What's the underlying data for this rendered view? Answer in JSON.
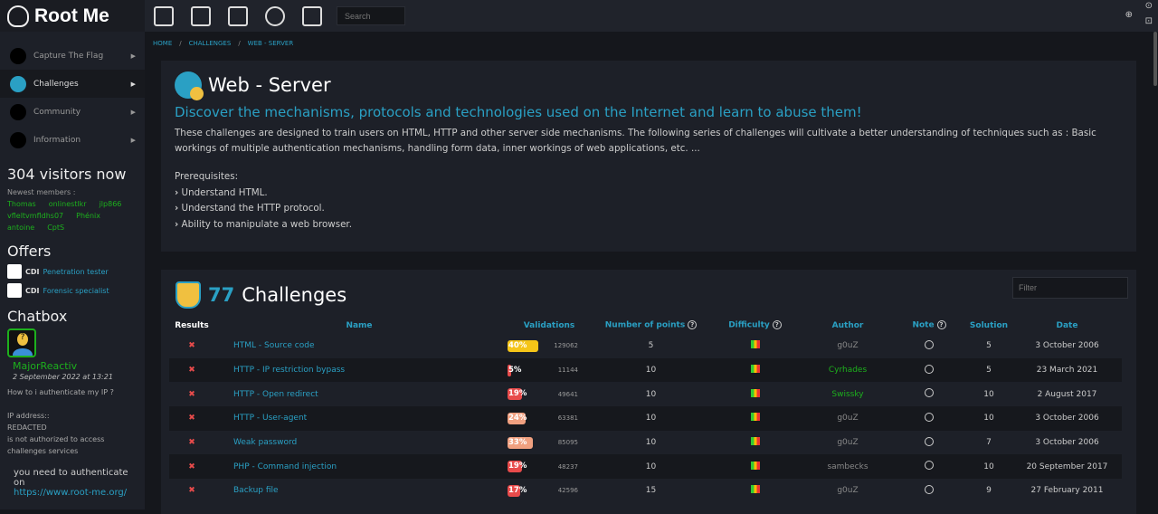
{
  "brand": "Root Me",
  "nav": [
    {
      "label": "Capture The Flag"
    },
    {
      "label": "Challenges"
    },
    {
      "label": "Community"
    },
    {
      "label": "Information"
    }
  ],
  "visitors": "304 visitors now",
  "newest_label": "Newest members :",
  "members": [
    "Thomas",
    "onlinestlkr",
    "jlp866",
    "vfleltvmfldhs07",
    "Phénix",
    "antoine",
    "CptS"
  ],
  "offers_title": "Offers",
  "offers": [
    {
      "type": "CDI",
      "title": "Penetration tester"
    },
    {
      "type": "CDI",
      "title": "Forensic specialist"
    }
  ],
  "chat": {
    "title": "Chatbox",
    "user": "MajorReactiv",
    "date": "2 September 2022 at 13:21",
    "message": "How to i authenticate my IP ?\n\nIP address::\nREDACTED\nis not authorized to access\nchallenges services",
    "message2": "you need to authenticate on",
    "link": "https://www.root-me.org/"
  },
  "topbar": {
    "icons": [
      "faq-icon",
      "signpost-icon",
      "documents-icon",
      "radar-icon",
      "cart-icon"
    ],
    "search_placeholder": "Search"
  },
  "breadcrumb": [
    "HOME",
    "CHALLENGES",
    "WEB - SERVER"
  ],
  "category": {
    "title": "Web - Server",
    "subtitle": "Discover the mechanisms, protocols and technologies used on the Internet and learn to abuse them!",
    "description": "These challenges are designed to train users on HTML, HTTP and other server side mechanisms. The following series of challenges will cultivate a better understanding of techniques such as : Basic workings of multiple authentication mechanisms, handling form data, inner workings of web applications, etc. ...",
    "prereq_title": "Prerequisites:",
    "prereqs": [
      "Understand HTML.",
      "Understand the HTTP protocol.",
      "Ability to manipulate a web browser."
    ]
  },
  "challenges": {
    "count": "77",
    "label": "Challenges",
    "filter_placeholder": "Filter",
    "headers": [
      "Results",
      "Name",
      "Validations",
      "Number of points",
      "Difficulty",
      "Author",
      "Note",
      "Solution",
      "Date"
    ],
    "rows": [
      {
        "name": "HTML - Source code",
        "pct": 40,
        "pct_label": "40%",
        "color": "#f5c518",
        "validations": "129062",
        "points": "5",
        "author": "g0uZ",
        "author_green": false,
        "solution": "5",
        "date": "3 October 2006"
      },
      {
        "name": "HTTP - IP restriction bypass",
        "pct": 5,
        "pct_label": "5%",
        "color": "#e84b4b",
        "validations": "11144",
        "points": "10",
        "author": "Cyrhades",
        "author_green": true,
        "solution": "5",
        "date": "23 March 2021"
      },
      {
        "name": "HTTP - Open redirect",
        "pct": 19,
        "pct_label": "19%",
        "color": "#e84b4b",
        "validations": "49641",
        "points": "10",
        "author": "Swissky",
        "author_green": true,
        "solution": "10",
        "date": "2 August 2017"
      },
      {
        "name": "HTTP - User-agent",
        "pct": 24,
        "pct_label": "24%",
        "color": "#f0a080",
        "validations": "63381",
        "points": "10",
        "author": "g0uZ",
        "author_green": false,
        "solution": "10",
        "date": "3 October 2006"
      },
      {
        "name": "Weak password",
        "pct": 33,
        "pct_label": "33%",
        "color": "#f0a080",
        "validations": "85095",
        "points": "10",
        "author": "g0uZ",
        "author_green": false,
        "solution": "7",
        "date": "3 October 2006"
      },
      {
        "name": "PHP - Command injection",
        "pct": 19,
        "pct_label": "19%",
        "color": "#e84b4b",
        "validations": "48237",
        "points": "10",
        "author": "sambecks",
        "author_green": false,
        "solution": "10",
        "date": "20 September 2017"
      },
      {
        "name": "Backup file",
        "pct": 17,
        "pct_label": "17%",
        "color": "#e84b4b",
        "validations": "42596",
        "points": "15",
        "author": "g0uZ",
        "author_green": false,
        "solution": "9",
        "date": "27 February 2011"
      }
    ]
  }
}
